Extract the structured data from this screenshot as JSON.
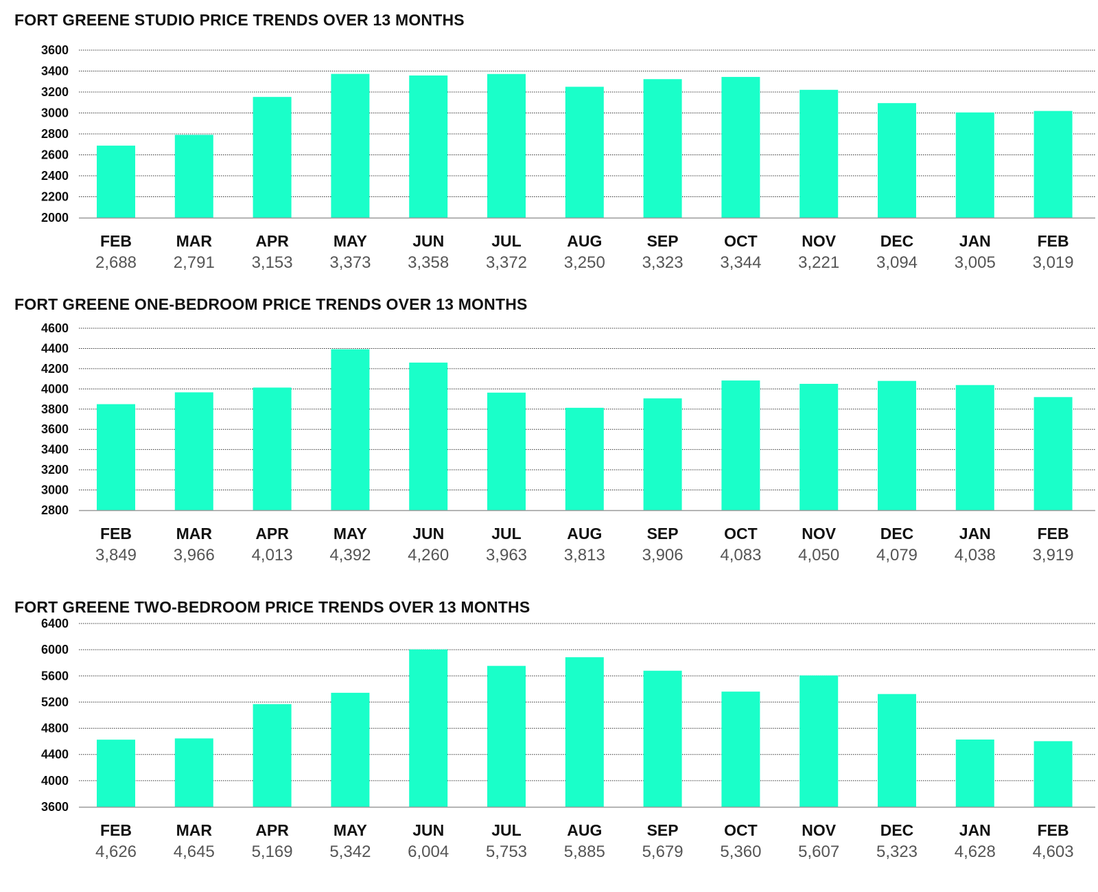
{
  "colors": {
    "bar": "#1affc9",
    "grid": "#333333",
    "axis": "#999999",
    "value_text": "#555555"
  },
  "chart_data": [
    {
      "type": "bar",
      "title": "FORT GREENE STUDIO PRICE TRENDS OVER 13 MONTHS",
      "categories": [
        "FEB",
        "MAR",
        "APR",
        "MAY",
        "JUN",
        "JUL",
        "AUG",
        "SEP",
        "OCT",
        "NOV",
        "DEC",
        "JAN",
        "FEB"
      ],
      "values": [
        2688,
        2791,
        3153,
        3373,
        3358,
        3372,
        3250,
        3323,
        3344,
        3221,
        3094,
        3005,
        3019
      ],
      "value_labels": [
        "2,688",
        "2,791",
        "3,153",
        "3,373",
        "3,358",
        "3,372",
        "3,250",
        "3,323",
        "3,344",
        "3,221",
        "3,094",
        "3,005",
        "3,019"
      ],
      "yticks": [
        2000,
        2200,
        2400,
        2600,
        2800,
        3000,
        3200,
        3400,
        3600
      ],
      "ylim": [
        2000,
        3600
      ],
      "xlabel": "",
      "ylabel": "",
      "grid": true
    },
    {
      "type": "bar",
      "title": "FORT GREENE ONE-BEDROOM PRICE TRENDS OVER 13 MONTHS",
      "categories": [
        "FEB",
        "MAR",
        "APR",
        "MAY",
        "JUN",
        "JUL",
        "AUG",
        "SEP",
        "OCT",
        "NOV",
        "DEC",
        "JAN",
        "FEB"
      ],
      "values": [
        3849,
        3966,
        4013,
        4392,
        4260,
        3963,
        3813,
        3906,
        4083,
        4050,
        4079,
        4038,
        3919
      ],
      "value_labels": [
        "3,849",
        "3,966",
        "4,013",
        "4,392",
        "4,260",
        "3,963",
        "3,813",
        "3,906",
        "4,083",
        "4,050",
        "4,079",
        "4,038",
        "3,919"
      ],
      "yticks": [
        2800,
        3000,
        3200,
        3400,
        3600,
        3800,
        4000,
        4200,
        4400,
        4600
      ],
      "ylim": [
        2800,
        4600
      ],
      "xlabel": "",
      "ylabel": "",
      "grid": true
    },
    {
      "type": "bar",
      "title": "FORT GREENE TWO-BEDROOM PRICE TRENDS OVER 13 MONTHS",
      "categories": [
        "FEB",
        "MAR",
        "APR",
        "MAY",
        "JUN",
        "JUL",
        "AUG",
        "SEP",
        "OCT",
        "NOV",
        "DEC",
        "JAN",
        "FEB"
      ],
      "values": [
        4626,
        4645,
        5169,
        5342,
        6004,
        5753,
        5885,
        5679,
        5360,
        5607,
        5323,
        4628,
        4603
      ],
      "value_labels": [
        "4,626",
        "4,645",
        "5,169",
        "5,342",
        "6,004",
        "5,753",
        "5,885",
        "5,679",
        "5,360",
        "5,607",
        "5,323",
        "4,628",
        "4,603"
      ],
      "yticks": [
        3600,
        4000,
        4400,
        4800,
        5200,
        5600,
        6000,
        6400
      ],
      "ylim": [
        3600,
        6400
      ],
      "xlabel": "",
      "ylabel": "",
      "grid": true
    }
  ]
}
